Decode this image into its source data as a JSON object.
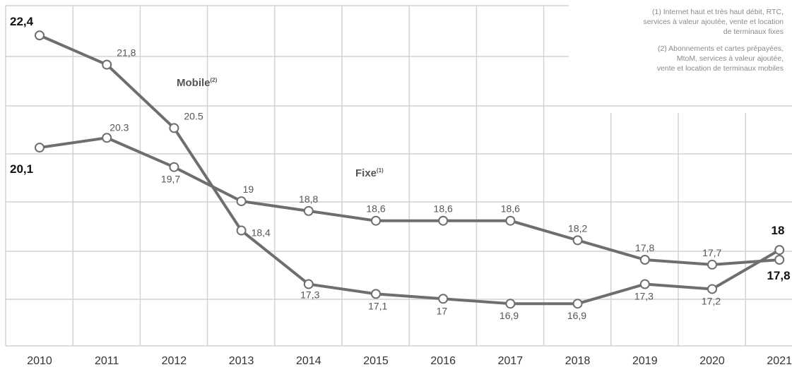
{
  "chart_data": {
    "type": "line",
    "title": "",
    "xlabel": "",
    "ylabel": "",
    "grid": true,
    "x": [
      "2010",
      "2011",
      "2012",
      "2013",
      "2014",
      "2015",
      "2016",
      "2017",
      "2018",
      "2019",
      "2020",
      "2021"
    ],
    "series": [
      {
        "name": "Mobile",
        "superscript": "(2)",
        "values": [
          22.4,
          21.8,
          20.5,
          18.4,
          17.3,
          17.1,
          17.0,
          16.9,
          16.9,
          17.3,
          17.2,
          18.0
        ],
        "labels": [
          "22,4",
          "21,8",
          "20.5",
          "18,4",
          "17,3",
          "17,1",
          "17",
          "16,9",
          "16,9",
          "17,3",
          "17,2",
          "18"
        ]
      },
      {
        "name": "Fixe",
        "superscript": "(1)",
        "values": [
          20.1,
          20.3,
          19.7,
          19.0,
          18.8,
          18.6,
          18.6,
          18.6,
          18.2,
          17.8,
          17.7,
          17.8
        ],
        "labels": [
          "20,1",
          "20.3",
          "19,7",
          "19",
          "18,8",
          "18,6",
          "18,6",
          "18,6",
          "18,2",
          "17,8",
          "17,7",
          "17,8"
        ]
      }
    ],
    "notes": [
      [
        "(1) Internet haut et très haut débit, RTC,",
        "services à valeur ajoutée, vente et location",
        "de terminaux fixes"
      ],
      [
        "(2) Abonnements et cartes prépayées,",
        "MtoM, services à valeur ajoutée,",
        "vente et location de terminaux mobiles"
      ]
    ],
    "colors": {
      "line": "#6e6e6e",
      "grid": "#d2d2d2",
      "text": "#555555",
      "bold_text": "#111111",
      "note": "#8a8a8a"
    }
  }
}
